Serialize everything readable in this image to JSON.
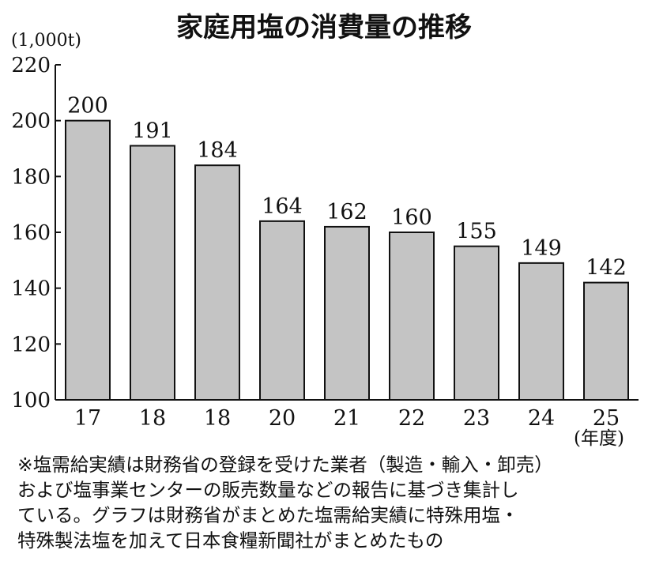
{
  "chart_data": {
    "type": "bar",
    "title": "家庭用塩の消費量の推移",
    "ylabel": "(1,000t)",
    "xlabel": "(年度)",
    "categories": [
      "17",
      "18",
      "18",
      "20",
      "21",
      "22",
      "23",
      "24",
      "25"
    ],
    "values": [
      200,
      191,
      184,
      164,
      162,
      160,
      155,
      149,
      142
    ],
    "data_labels": [
      "200",
      "191",
      "184",
      "164",
      "162",
      "160",
      "155",
      "149",
      "142"
    ],
    "ylim": [
      100,
      220
    ],
    "yticks": [
      "100",
      "120",
      "140",
      "160",
      "180",
      "200",
      "220"
    ],
    "grid": false,
    "bar_color": "#c4c4c4",
    "axis_color": "#111111"
  },
  "note": {
    "lines": [
      "※塩需給実績は財務省の登録を受けた業者（製造・輸入・卸売）",
      "および塩事業センターの販売数量などの報告に基づき集計し",
      "ている。グラフは財務省がまとめた塩需給実績に特殊用塩・",
      "特殊製法塩を加えて日本食糧新聞社がまとめたもの"
    ]
  }
}
